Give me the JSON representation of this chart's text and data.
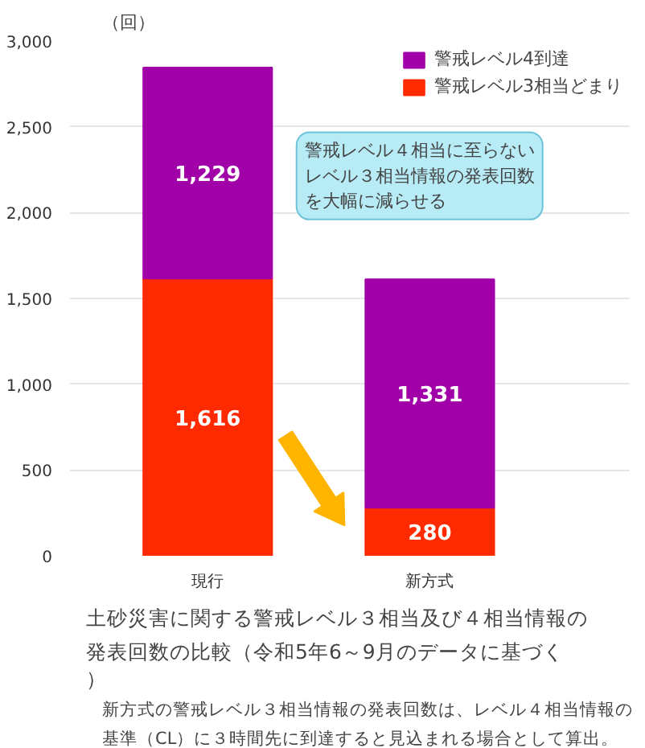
{
  "chart_data": {
    "type": "bar",
    "stacked": true,
    "title": "土砂災害に関する警戒レベル３相当及び４相当情報の発表回数の比較（令和5年6～9月のデータに基づく）",
    "ylabel": "（回）",
    "categories": [
      "現行",
      "新方式"
    ],
    "series": [
      {
        "name": "警戒レベル3相当どまり",
        "color": "#ff2a00",
        "values": [
          1616,
          280
        ],
        "value_labels": [
          "1,616",
          "280"
        ]
      },
      {
        "name": "警戒レベル4到達",
        "color": "#a100a8",
        "values": [
          1229,
          1331
        ],
        "value_labels": [
          "1,229",
          "1,331"
        ]
      }
    ],
    "ylim": [
      0,
      3000
    ],
    "yticks": [
      {
        "value": 0,
        "label": "0"
      },
      {
        "value": 500,
        "label": "500"
      },
      {
        "value": 1000,
        "label": "1,000"
      },
      {
        "value": 1500,
        "label": "1,500"
      },
      {
        "value": 2000,
        "label": "2,000"
      },
      {
        "value": 2500,
        "label": "2,500"
      },
      {
        "value": 3000,
        "label": "3,000"
      }
    ],
    "grid": "y",
    "legend": "top right",
    "annotations": [
      "警戒レベル４相当に至らないレベル３相当情報の発表回数を大幅に減らせる",
      "新方式の警戒レベル３相当情報の発表回数は、レベル４相当情報の基準（CL）に３時間先に到達すると見込まれる場合として算出。"
    ]
  }
}
